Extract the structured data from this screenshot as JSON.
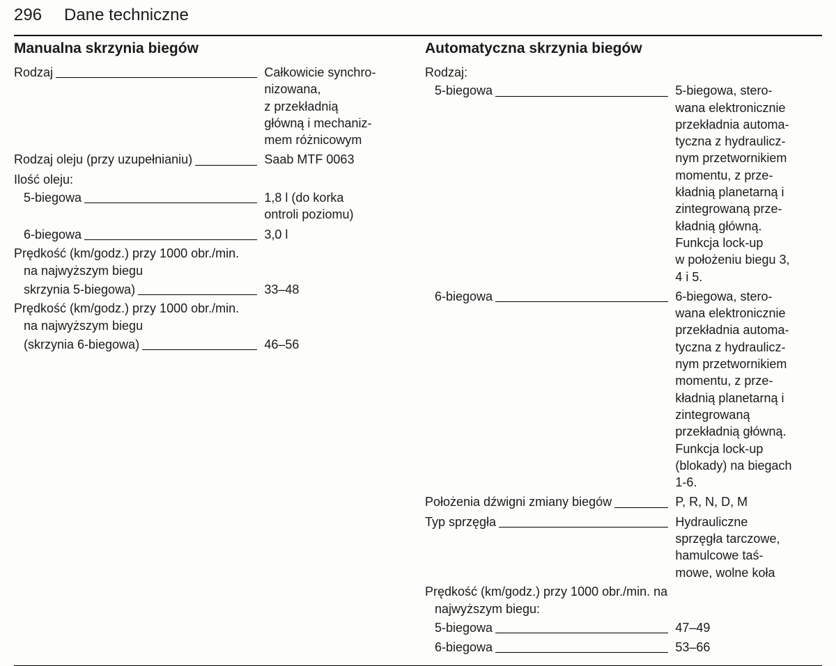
{
  "page": {
    "number": "296",
    "section": "Dane techniczne"
  },
  "manual": {
    "title": "Manualna skrzynia biegów",
    "type_label": "Rodzaj",
    "type_value": "Całkowicie synchro-\nnizowana,\nz przekładnią\ngłówną i mechaniz-\nmem różnicowym",
    "oil_type_label": "Rodzaj oleju (przy uzupełnianiu)",
    "oil_type_value": "Saab MTF 0063",
    "oil_qty_header": "Ilość oleju:",
    "oil5_label": "5-biegowa",
    "oil5_value": "1,8 l (do korka\nontroli poziomu)",
    "oil6_label": "6-biegowa",
    "oil6_value": "3,0 l",
    "speed5_line1": "Prędkość (km/godz.) przy 1000 obr./min.",
    "speed5_line2": "na najwyższym biegu",
    "speed5_line3": "skrzynia 5-biegowa)",
    "speed5_value": "33–48",
    "speed6_line1": "Prędkość (km/godz.) przy 1000 obr./min.",
    "speed6_line2": "na najwyższym biegu",
    "speed6_line3": "(skrzynia 6-biegowa)",
    "speed6_value": "46–56"
  },
  "auto": {
    "title": "Automatyczna skrzynia biegów",
    "type_header": "Rodzaj:",
    "g5_label": "5-biegowa",
    "g5_value": "5-biegowa, stero-\nwana elektronicznie\nprzekładnia automa-\ntyczna z hydraulicz-\nnym przetwornikiem\nmomentu, z prze-\nkładnią planetarną i\nzintegrowaną prze-\nkładnią główną.\nFunkcja lock-up\nw położeniu biegu 3,\n4 i 5.",
    "g6_label": "6-biegowa",
    "g6_value": "6-biegowa, stero-\nwana elektronicznie\nprzekładnia automa-\ntyczna z hydraulicz-\nnym przetwornikiem\nmomentu, z prze-\nkładnią planetarną i\nzintegrowaną\nprzekładnią główną.\nFunkcja lock-up\n(blokady) na biegach\n1-6.",
    "lever_label": "Położenia dźwigni zmiany biegów",
    "lever_value": "P, R, N, D, M",
    "clutch_label": "Typ sprzęgła",
    "clutch_value": "Hydrauliczne\nsprzęgła tarczowe,\nhamulcowe taś-\nmowe, wolne koła",
    "speed_header_line1": "Prędkość (km/godz.) przy 1000 obr./min. na",
    "speed_header_line2": "najwyższym biegu:",
    "s5_label": "5-biegowa",
    "s5_value": "47–49",
    "s6_label": "6-biegowa",
    "s6_value": "53–66"
  }
}
